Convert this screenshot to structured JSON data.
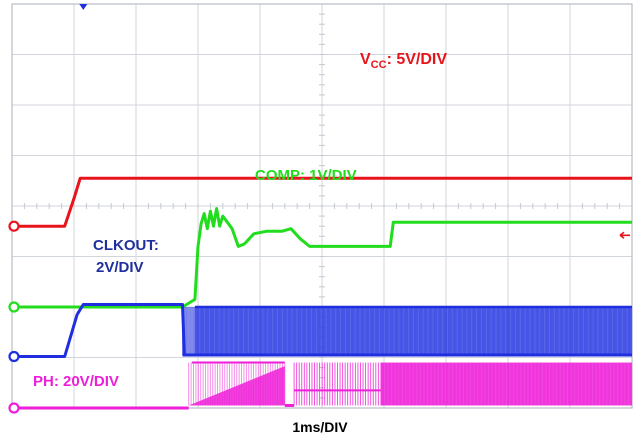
{
  "chart_data": {
    "type": "line",
    "title": "",
    "xlabel": "1ms/DIV",
    "ylabel": "",
    "grid": true,
    "x_divisions": 10,
    "y_divisions": 8,
    "series": [
      {
        "name": "V_CC: 5V/DIV",
        "label_main": "V",
        "label_sub": "CC",
        "label_rest": ": 5V/DIV",
        "color": "#e8141c",
        "ground_div": 3.6,
        "points": [
          [
            0,
            3.6
          ],
          [
            0.85,
            3.6
          ],
          [
            1.0,
            4.15
          ],
          [
            1.1,
            4.55
          ],
          [
            10,
            4.55
          ]
        ]
      },
      {
        "name": "COMP: 1V/DIV",
        "label": "COMP: 1V/DIV",
        "color": "#22dd1e",
        "ground_div": 2.0,
        "points": [
          [
            0,
            2.0
          ],
          [
            2.75,
            2.0
          ],
          [
            2.95,
            2.15
          ],
          [
            3.0,
            3.2
          ],
          [
            3.05,
            3.65
          ],
          [
            3.1,
            3.85
          ],
          [
            3.15,
            3.55
          ],
          [
            3.2,
            3.9
          ],
          [
            3.25,
            3.6
          ],
          [
            3.3,
            3.95
          ],
          [
            3.35,
            3.6
          ],
          [
            3.4,
            3.8
          ],
          [
            3.55,
            3.55
          ],
          [
            3.65,
            3.2
          ],
          [
            3.75,
            3.25
          ],
          [
            3.9,
            3.45
          ],
          [
            4.1,
            3.5
          ],
          [
            4.35,
            3.5
          ],
          [
            4.5,
            3.55
          ],
          [
            4.65,
            3.35
          ],
          [
            4.8,
            3.2
          ],
          [
            6.1,
            3.2
          ],
          [
            6.15,
            3.68
          ],
          [
            10,
            3.68
          ]
        ]
      },
      {
        "name": "CLKOUT: 2V/DIV",
        "label_line1": "CLKOUT:",
        "label_line2": "2V/DIV",
        "color": "#1f2fe0",
        "ground_div": 1.02,
        "points": [
          [
            0,
            1.02
          ],
          [
            0.85,
            1.02
          ],
          [
            1.05,
            1.85
          ],
          [
            1.15,
            2.05
          ],
          [
            2.75,
            2.05
          ],
          [
            2.78,
            1.05
          ],
          [
            2.85,
            1.05
          ]
        ],
        "switching_start": 2.75,
        "switching_end": 10,
        "switching_low": 1.05,
        "switching_high": 2.0
      },
      {
        "name": "PH: 20V/DIV",
        "label": "PH: 20V/DIV",
        "color": "#ee1fd8",
        "ground_div": 0.0,
        "points": [
          [
            0,
            0.0
          ],
          [
            2.85,
            0.0
          ]
        ],
        "burst1_start": 2.85,
        "burst1_end": 4.4,
        "burst1_high": 0.9,
        "burst2_start": 4.55,
        "burst2_end": 5.95,
        "burst2_high": 0.9,
        "burst3_start": 5.95,
        "burst3_end": 10,
        "burst3_high": 0.9
      }
    ]
  }
}
